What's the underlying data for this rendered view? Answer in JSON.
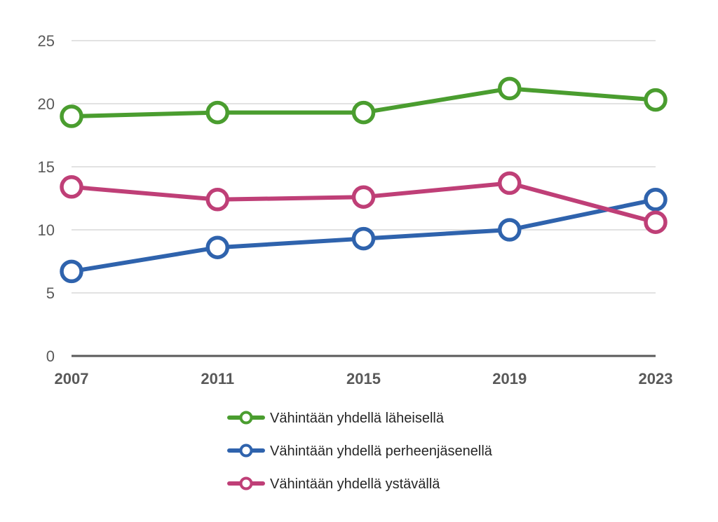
{
  "chart_data": {
    "type": "line",
    "title": "",
    "xlabel": "",
    "ylabel": "",
    "categories": [
      "2007",
      "2011",
      "2015",
      "2019",
      "2023"
    ],
    "ylim": [
      0,
      25
    ],
    "yticks": [
      0,
      5,
      10,
      15,
      20,
      25
    ],
    "grid": true,
    "legend_position": "bottom",
    "series": [
      {
        "name": "Vähintään yhdellä läheisellä",
        "color": "#4a9d2f",
        "values": [
          19.0,
          19.3,
          19.3,
          21.2,
          20.3
        ]
      },
      {
        "name": "Vähintään yhdellä perheenjäsenellä",
        "color": "#2f63ad",
        "values": [
          6.7,
          8.6,
          9.3,
          10.0,
          12.4
        ]
      },
      {
        "name": "Vähintään yhdellä ystävällä",
        "color": "#bf3f77",
        "values": [
          13.4,
          12.4,
          12.6,
          13.7,
          10.6
        ]
      }
    ]
  }
}
